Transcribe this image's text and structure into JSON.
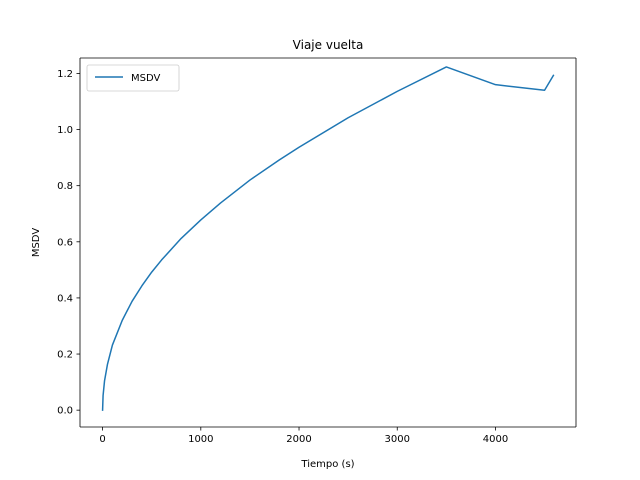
{
  "chart_data": {
    "type": "line",
    "title": "Viaje vuelta",
    "xlabel": "Tiempo (s)",
    "ylabel": "MSDV",
    "xlim": [
      -230,
      4820
    ],
    "ylim": [
      -0.06,
      1.255
    ],
    "xticks": [
      0,
      1000,
      2000,
      3000,
      4000
    ],
    "yticks": [
      0.0,
      0.2,
      0.4,
      0.6,
      0.8,
      1.0,
      1.2
    ],
    "xtick_labels": [
      "0",
      "1000",
      "2000",
      "3000",
      "4000"
    ],
    "ytick_labels": [
      "0.0",
      "0.2",
      "0.4",
      "0.6",
      "0.8",
      "1.0",
      "1.2"
    ],
    "grid": false,
    "legend_position": "upper-left",
    "series": [
      {
        "name": "MSDV",
        "color": "#1f77b4",
        "x": [
          0,
          5,
          20,
          50,
          100,
          200,
          300,
          400,
          500,
          600,
          800,
          1000,
          1200,
          1500,
          1800,
          2000,
          2500,
          3000,
          3500,
          4000,
          4500,
          4590
        ],
        "y": [
          0.0,
          0.052,
          0.105,
          0.164,
          0.232,
          0.32,
          0.388,
          0.443,
          0.492,
          0.535,
          0.612,
          0.678,
          0.738,
          0.82,
          0.892,
          0.937,
          1.042,
          1.136,
          1.223,
          1.16,
          1.14,
          1.193
        ]
      }
    ]
  }
}
